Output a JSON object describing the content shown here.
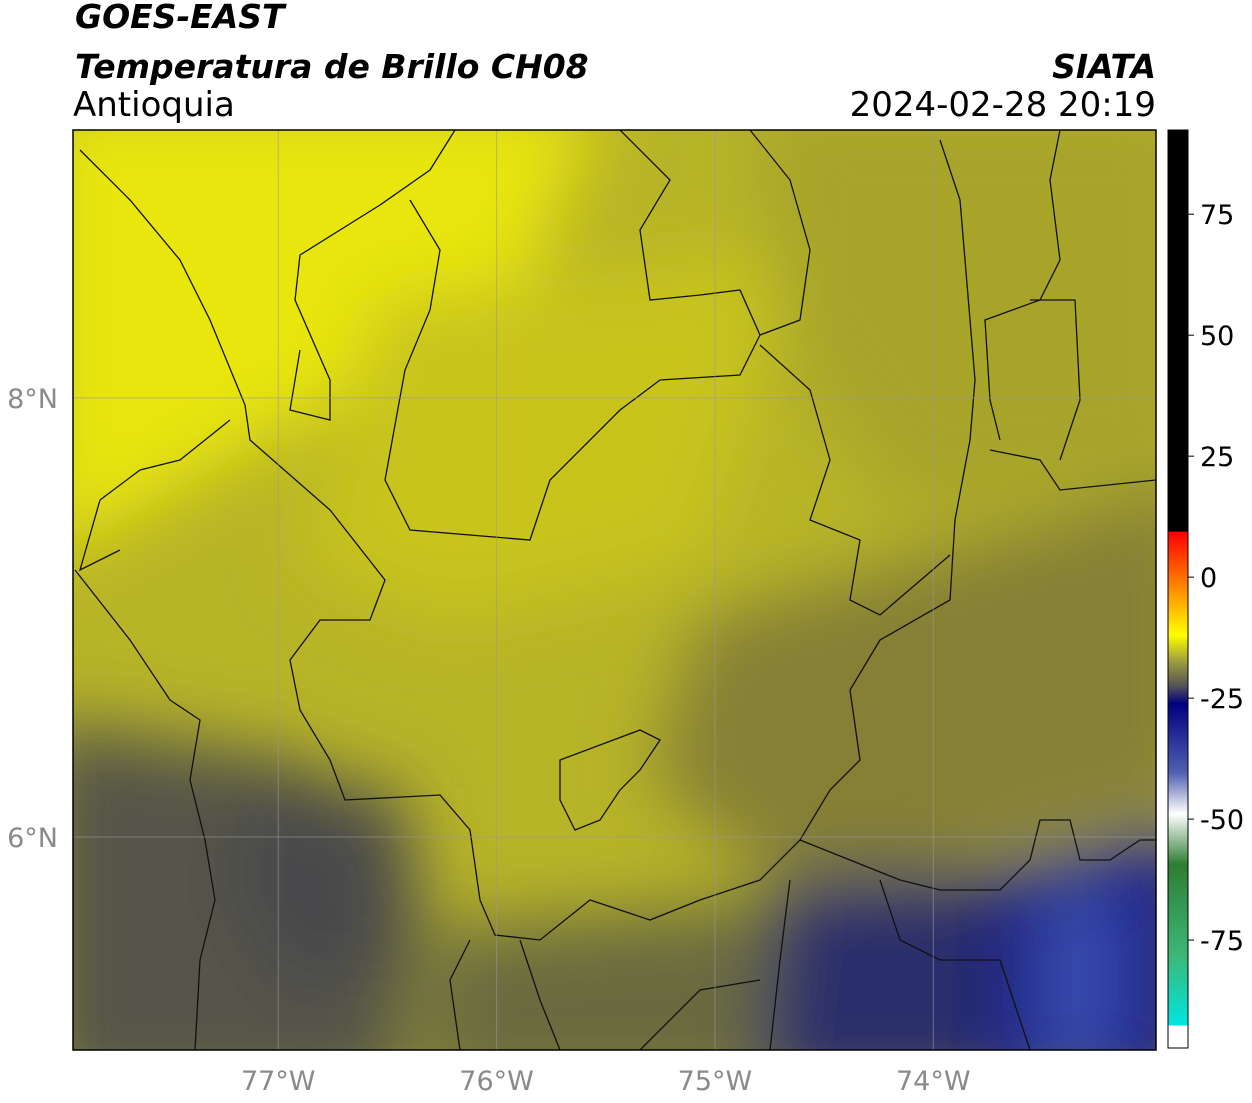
{
  "header": {
    "title": "GOES-EAST",
    "subtitle": "Temperatura de Brillo CH08",
    "region": "Antioquia",
    "source": "SIATA",
    "timestamp": "2024-02-28 20:19"
  },
  "map": {
    "lon_range": [
      -77.94,
      -72.98
    ],
    "lat_range": [
      5.03,
      9.22
    ],
    "lon_ticks": [
      {
        "value": -77,
        "label": "77°W"
      },
      {
        "value": -76,
        "label": "76°W"
      },
      {
        "value": -75,
        "label": "75°W"
      },
      {
        "value": -74,
        "label": "74°W"
      }
    ],
    "lat_ticks": [
      {
        "value": 8,
        "label": "8°N"
      },
      {
        "value": 6,
        "label": "6°N"
      }
    ]
  },
  "colorbar": {
    "range": [
      -97.3,
      92.4
    ],
    "ticks": [
      75,
      50,
      25,
      0,
      -25,
      -50,
      -75
    ]
  }
}
